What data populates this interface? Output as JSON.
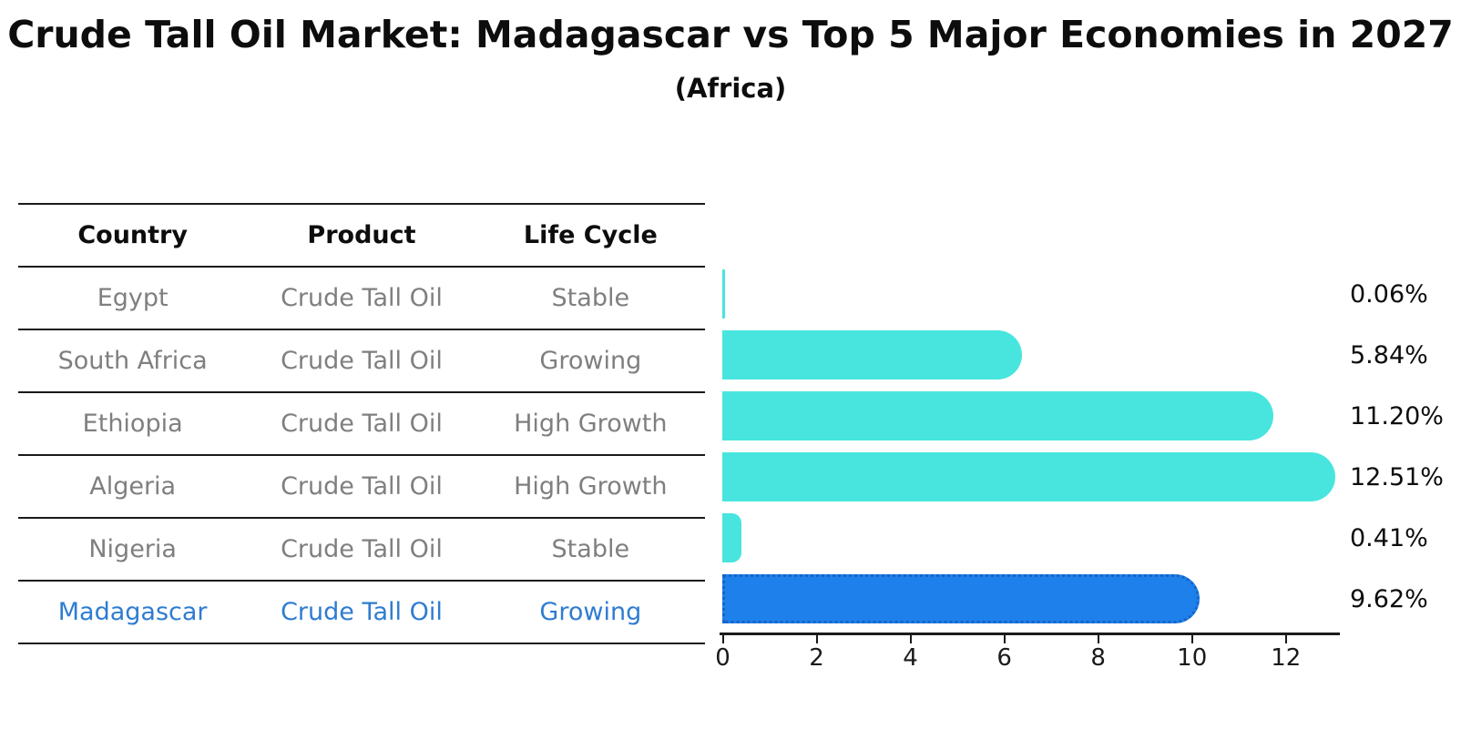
{
  "title": "Crude Tall Oil Market: Madagascar vs Top 5 Major Economies in 2027",
  "subtitle": "(Africa)",
  "table": {
    "headers": [
      "Country",
      "Product",
      "Life Cycle"
    ],
    "rows": [
      {
        "country": "Egypt",
        "product": "Crude Tall Oil",
        "life_cycle": "Stable",
        "highlight": false
      },
      {
        "country": "South Africa",
        "product": "Crude Tall Oil",
        "life_cycle": "Growing",
        "highlight": false
      },
      {
        "country": "Ethiopia",
        "product": "Crude Tall Oil",
        "life_cycle": "High Growth",
        "highlight": false
      },
      {
        "country": "Algeria",
        "product": "Crude Tall Oil",
        "life_cycle": "High Growth",
        "highlight": false
      },
      {
        "country": "Nigeria",
        "product": "Crude Tall Oil",
        "life_cycle": "Stable",
        "highlight": false
      },
      {
        "country": "Madagascar",
        "product": "Crude Tall Oil",
        "life_cycle": "Growing",
        "highlight": true
      }
    ]
  },
  "chart_data": {
    "type": "bar",
    "orientation": "horizontal",
    "title": "Crude Tall Oil Market: Madagascar vs Top 5 Major Economies in 2027 (Africa)",
    "categories": [
      "Egypt",
      "South Africa",
      "Ethiopia",
      "Algeria",
      "Nigeria",
      "Madagascar"
    ],
    "values": [
      0.06,
      5.84,
      11.2,
      12.51,
      0.41,
      9.62
    ],
    "labels": [
      "0.06%",
      "5.84%",
      "11.20%",
      "12.51%",
      "0.41%",
      "9.62%"
    ],
    "x_ticks": [
      0,
      2,
      4,
      6,
      8,
      10,
      12
    ],
    "xlim": [
      0,
      13.14
    ],
    "grid": false,
    "legend": "none",
    "bar_color": "#48e5df",
    "highlight_color": "#1e80eb",
    "highlight_index": 5
  },
  "colors": {
    "bar": "#48e5df",
    "highlight_bar": "#1e80eb",
    "highlight_text": "#2e7cd1",
    "table_text": "#7f7f7f",
    "axis": "#1a1a1a"
  }
}
